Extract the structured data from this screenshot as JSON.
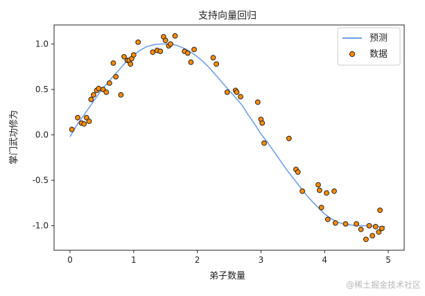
{
  "watermark": "@稀土掘金技术社区",
  "chart_data": {
    "type": "scatter",
    "title": "支持向量回归",
    "xlabel": "弟子数量",
    "ylabel": "掌门武功修为",
    "xlim": [
      -0.25,
      5.25
    ],
    "ylim": [
      -1.27,
      1.21
    ],
    "xticks": [
      0,
      1,
      2,
      3,
      4,
      5
    ],
    "xtick_labels": [
      "0",
      "1",
      "2",
      "3",
      "4",
      "5"
    ],
    "yticks": [
      -1.0,
      -0.5,
      0.0,
      0.5,
      1.0
    ],
    "ytick_labels": [
      "-1.0",
      "-0.5",
      "0.0",
      "0.5",
      "1.0"
    ],
    "grid": false,
    "legend": {
      "position": "top-right",
      "entries": [
        "预测",
        "数据"
      ]
    },
    "series": [
      {
        "name": "预测",
        "kind": "line",
        "color": "#6e9ee8",
        "x": [
          0,
          0.1,
          0.2,
          0.3,
          0.4,
          0.5,
          0.6,
          0.7,
          0.8,
          0.9,
          1.0,
          1.1,
          1.2,
          1.3,
          1.4,
          1.5,
          1.6,
          1.7,
          1.8,
          1.9,
          2.0,
          2.1,
          2.2,
          2.3,
          2.4,
          2.5,
          2.6,
          2.7,
          2.8,
          2.9,
          3.0,
          3.1,
          3.2,
          3.3,
          3.4,
          3.5,
          3.6,
          3.7,
          3.8,
          3.9,
          4.0,
          4.1,
          4.2,
          4.3,
          4.4,
          4.5,
          4.6,
          4.7,
          4.8,
          4.9,
          4.95
        ],
        "y": [
          -0.02,
          0.1,
          0.2,
          0.3,
          0.4,
          0.5,
          0.58,
          0.66,
          0.74,
          0.82,
          0.88,
          0.93,
          0.97,
          0.99,
          1.0,
          1.0,
          1.0,
          0.98,
          0.95,
          0.91,
          0.86,
          0.8,
          0.73,
          0.65,
          0.57,
          0.49,
          0.41,
          0.33,
          0.22,
          0.12,
          0.01,
          -0.08,
          -0.18,
          -0.28,
          -0.38,
          -0.47,
          -0.56,
          -0.65,
          -0.73,
          -0.8,
          -0.87,
          -0.92,
          -0.96,
          -0.98,
          -0.99,
          -1.0,
          -1.0,
          -1.0,
          -1.01,
          -1.01,
          -1.01
        ]
      },
      {
        "name": "数据",
        "kind": "scatter",
        "color": "#ff8c00",
        "edgecolor": "#222222",
        "x": [
          0.03,
          0.12,
          0.18,
          0.22,
          0.26,
          0.3,
          0.33,
          0.37,
          0.42,
          0.45,
          0.52,
          0.57,
          0.62,
          0.68,
          0.72,
          0.8,
          0.85,
          0.9,
          0.93,
          0.95,
          0.97,
          1.0,
          1.07,
          1.3,
          1.37,
          1.42,
          1.47,
          1.5,
          1.55,
          1.58,
          1.65,
          1.8,
          1.85,
          1.9,
          1.95,
          2.25,
          2.3,
          2.47,
          2.6,
          2.62,
          2.68,
          2.95,
          3.0,
          3.02,
          3.05,
          3.44,
          3.55,
          3.58,
          3.65,
          3.9,
          3.92,
          3.95,
          4.03,
          4.05,
          4.15,
          4.17,
          4.33,
          4.5,
          4.57,
          4.65,
          4.7,
          4.75,
          4.8,
          4.85,
          4.87,
          4.9
        ],
        "y": [
          0.06,
          0.19,
          0.13,
          0.12,
          0.19,
          0.15,
          0.39,
          0.44,
          0.49,
          0.51,
          0.5,
          0.47,
          0.57,
          0.79,
          0.64,
          0.44,
          0.86,
          0.82,
          0.82,
          0.78,
          0.84,
          0.88,
          1.02,
          0.91,
          0.93,
          0.92,
          1.08,
          1.04,
          0.98,
          1.0,
          1.09,
          0.92,
          0.9,
          0.8,
          0.94,
          0.85,
          0.78,
          0.47,
          0.49,
          0.47,
          0.42,
          0.36,
          0.17,
          0.13,
          -0.09,
          -0.04,
          -0.38,
          -0.41,
          -0.62,
          -0.55,
          -0.61,
          -0.8,
          -0.64,
          -0.93,
          -0.62,
          -0.97,
          -0.98,
          -0.98,
          -1.04,
          -1.15,
          -1.0,
          -1.11,
          -1.01,
          -1.07,
          -0.83,
          -1.03
        ]
      }
    ]
  }
}
